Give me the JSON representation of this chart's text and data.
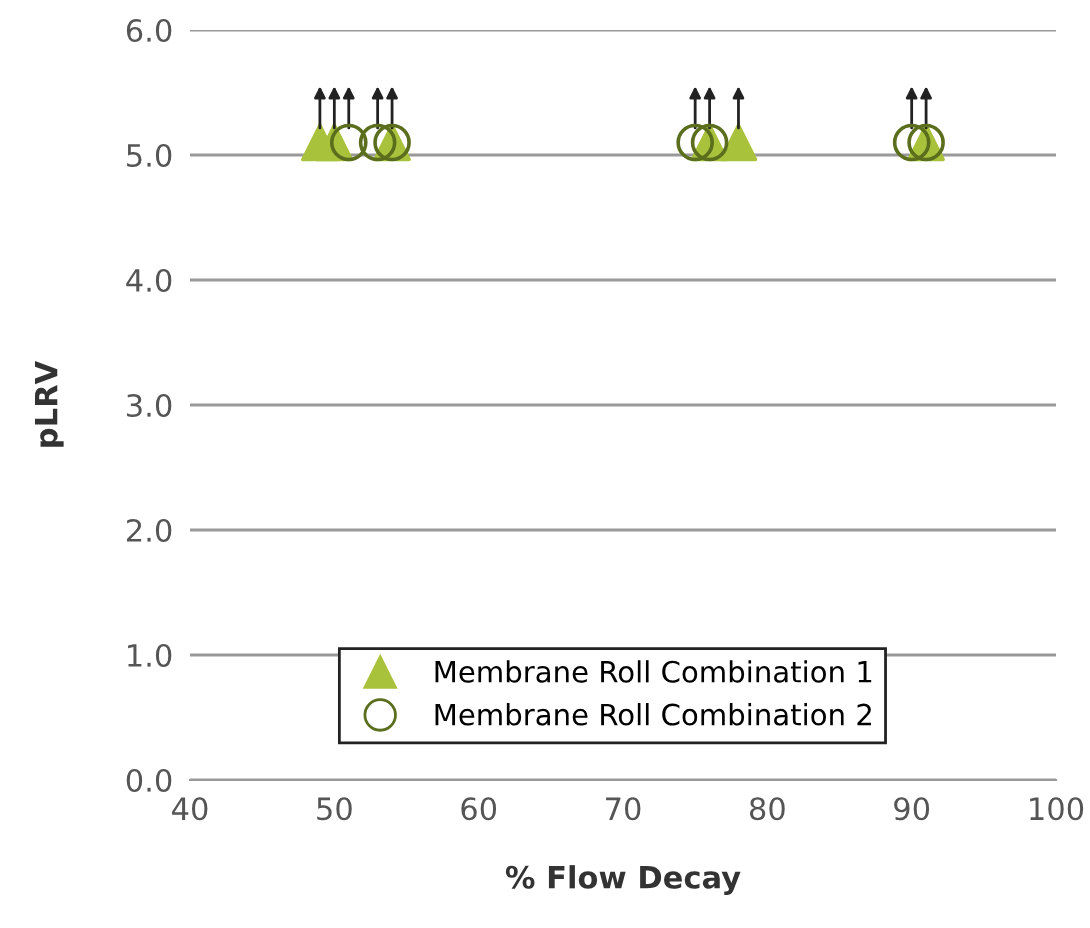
{
  "chart_data": {
    "type": "scatter",
    "xlabel": "% Flow Decay",
    "ylabel": "pLRV",
    "xlim": [
      40,
      100
    ],
    "xticks": [
      40,
      50,
      60,
      70,
      80,
      90,
      100
    ],
    "ylim": [
      0,
      6
    ],
    "yticks": [
      {
        "value": 0,
        "label": "0.0"
      },
      {
        "value": 1,
        "label": "1.0"
      },
      {
        "value": 2,
        "label": "2.0"
      },
      {
        "value": 3,
        "label": "3.0"
      },
      {
        "value": 4,
        "label": "4.0"
      },
      {
        "value": 5,
        "label": "5.0"
      },
      {
        "value": 6,
        "label": "6.0"
      }
    ],
    "grid": "y",
    "legend": "bottom right",
    "series": [
      {
        "name": "Membrane Roll Combination 1",
        "color": "#a9c23c",
        "marker": "triangle",
        "x": [
          49,
          50,
          54,
          76,
          78,
          91
        ],
        "values": [
          5.1,
          5.1,
          5.1,
          5.1,
          5.1,
          5.1
        ]
      },
      {
        "name": "Membrane Roll Combination 2",
        "color": "#5a6e1e",
        "marker": "circle",
        "x": [
          51,
          53,
          54,
          75,
          76,
          90,
          91
        ],
        "values": [
          5.1,
          5.1,
          5.1,
          5.1,
          5.1,
          5.1,
          5.1
        ]
      }
    ]
  }
}
